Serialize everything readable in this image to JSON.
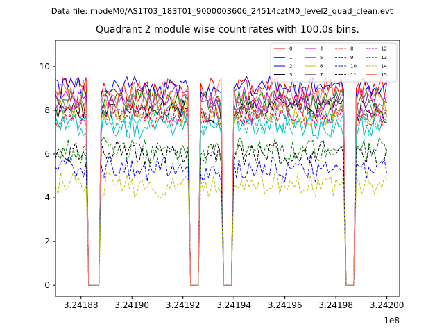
{
  "suptitle": "Data file: modeM0/AS1T03_183T01_9000003606_24514cztM0_level2_quad_clean.evt",
  "chart_data": {
    "type": "line",
    "title": "Quadrant 2 module wise count rates with 100.0s bins.",
    "xlabel": "",
    "ylabel": "",
    "offset_label": "1e8",
    "xlim": [
      3.24187,
      3.242005
    ],
    "ylim": [
      -0.5,
      11.2
    ],
    "x_ticks": [
      3.24188,
      3.2419,
      3.24192,
      3.24194,
      3.24196,
      3.24198,
      3.242
    ],
    "x_tick_labels": [
      "3.24188",
      "3.24190",
      "3.24192",
      "3.24194",
      "3.24196",
      "3.24198",
      "3.24200"
    ],
    "y_ticks": [
      0,
      2,
      4,
      6,
      8,
      10
    ],
    "y_tick_labels": [
      "0",
      "2",
      "4",
      "6",
      "8",
      "10"
    ],
    "x_start": 3.24187,
    "bin_width": 1e-06,
    "n_bins": 282,
    "gaps": [
      [
        3.2418826,
        3.2418874
      ],
      [
        3.2419226,
        3.2419264
      ],
      [
        3.2419356,
        3.2419396
      ],
      [
        3.2419836,
        3.2419874
      ]
    ],
    "legend_location": "upper right",
    "legend_columns": 4,
    "series": [
      {
        "name": "0",
        "color": "#ff0000",
        "dash": "solid",
        "mean": 8.95
      },
      {
        "name": "1",
        "color": "#008000",
        "dash": "solid",
        "mean": 8.5
      },
      {
        "name": "2",
        "color": "#0000ff",
        "dash": "solid",
        "mean": 9.05
      },
      {
        "name": "3",
        "color": "#000000",
        "dash": "solid",
        "mean": 8.05
      },
      {
        "name": "4",
        "color": "#bf00bf",
        "dash": "solid",
        "mean": 8.5
      },
      {
        "name": "5",
        "color": "#00bfbf",
        "dash": "solid",
        "mean": 7.25
      },
      {
        "name": "6",
        "color": "#bfbf00",
        "dash": "solid",
        "mean": 7.85
      },
      {
        "name": "7",
        "color": "#7f7f7f",
        "dash": "solid",
        "mean": 8.15
      },
      {
        "name": "8",
        "color": "#ff0000",
        "dash": "dashed",
        "mean": 7.75
      },
      {
        "name": "9",
        "color": "#008000",
        "dash": "dashed",
        "mean": 6.2
      },
      {
        "name": "10",
        "color": "#0000ff",
        "dash": "dashed",
        "mean": 5.3
      },
      {
        "name": "11",
        "color": "#000000",
        "dash": "dashed",
        "mean": 6.0
      },
      {
        "name": "12",
        "color": "#bf00bf",
        "dash": "dashed",
        "mean": 7.95
      },
      {
        "name": "13",
        "color": "#00bfbf",
        "dash": "dashed",
        "mean": 7.45
      },
      {
        "name": "14",
        "color": "#bfbf00",
        "dash": "dashed",
        "mean": 4.6
      },
      {
        "name": "15",
        "color": "#fa8072",
        "dash": "solid",
        "mean": 8.8
      }
    ]
  }
}
